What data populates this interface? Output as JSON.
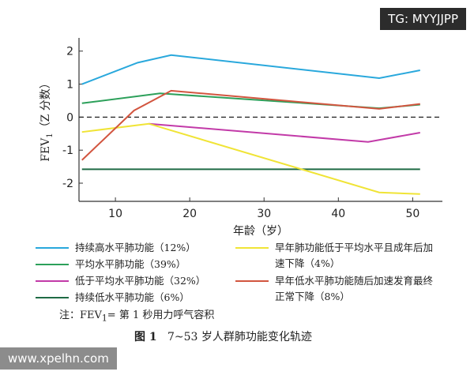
{
  "chart_data": {
    "type": "line",
    "y_label": {
      "text": "FEV",
      "subscript": "1",
      "suffix": "（Z 分数）"
    },
    "x_label": "年龄（岁）",
    "xlim": [
      5.1,
      54
    ],
    "xticks": [
      10,
      20,
      30,
      40,
      50
    ],
    "ylim": [
      -2.55,
      2.4
    ],
    "yticks": [
      -2,
      -1,
      0,
      1,
      2
    ],
    "reference_line_y": 0,
    "series": [
      {
        "name": "持续高水平肺功能（12%）",
        "color": "#29a8dc",
        "x": [
          5.5,
          13,
          17.5,
          45.5,
          51
        ],
        "values": [
          1.0,
          1.65,
          1.88,
          1.18,
          1.42
        ]
      },
      {
        "name": "平均水平肺功能（39%）",
        "color": "#2ca05a",
        "x": [
          5.5,
          16,
          45.5,
          51
        ],
        "values": [
          0.42,
          0.72,
          0.27,
          0.38
        ]
      },
      {
        "name": "低于平均水平肺功能（32%）",
        "color": "#c23aa8",
        "x": [
          14.5,
          44,
          51
        ],
        "values": [
          -0.2,
          -0.75,
          -0.47
        ]
      },
      {
        "name": "持续低水平肺功能（6%）",
        "color": "#1f6b45",
        "x": [
          5.5,
          51
        ],
        "values": [
          -1.58,
          -1.58
        ]
      },
      {
        "name": "早年肺功能低于平均水平且成年后加速下降（4%）",
        "color": "#f0e436",
        "x": [
          5.5,
          14.5,
          45.5,
          51
        ],
        "values": [
          -0.45,
          -0.2,
          -2.28,
          -2.33
        ]
      },
      {
        "name": "早年低水平肺功能随后加速发育最终正常下降（8%）",
        "color": "#d2553f",
        "x": [
          5.5,
          12.5,
          17.5,
          45.5,
          51
        ],
        "values": [
          -1.3,
          0.2,
          0.8,
          0.25,
          0.4
        ]
      }
    ],
    "note": {
      "prefix": "注：FEV",
      "subscript": "1",
      "suffix": "= 第 1 秒用力呼气容积"
    },
    "caption": {
      "label": "图 1",
      "text": "7~53 岁人群肺功能变化轨迹"
    }
  },
  "watermarks": [
    "TG: MYYJJPP",
    "www.xpelhn.com"
  ]
}
